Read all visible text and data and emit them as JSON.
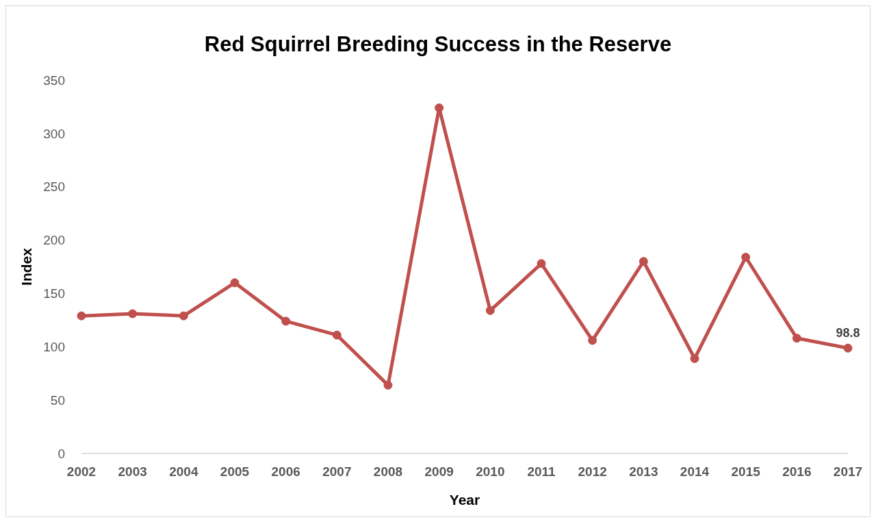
{
  "chart_data": {
    "type": "line",
    "title": "Red Squirrel Breeding Success in the Reserve",
    "xlabel": "Year",
    "ylabel": "Index",
    "categories": [
      "2002",
      "2003",
      "2004",
      "2005",
      "2006",
      "2007",
      "2008",
      "2009",
      "2010",
      "2011",
      "2012",
      "2013",
      "2014",
      "2015",
      "2016",
      "2017"
    ],
    "series": [
      {
        "color": "#c0504d",
        "values": [
          129,
          131,
          129,
          160,
          124,
          111,
          64,
          324,
          134,
          178,
          106,
          180,
          89,
          184,
          108,
          98.8
        ],
        "value_labels": [
          null,
          null,
          null,
          null,
          null,
          null,
          null,
          null,
          null,
          null,
          null,
          null,
          null,
          null,
          null,
          "98.8"
        ]
      }
    ],
    "ylim": [
      0,
      350
    ],
    "yticks": [
      0,
      50,
      100,
      150,
      200,
      250,
      300,
      350
    ],
    "grid": false,
    "legend": false,
    "marker": "circle",
    "line_style": "solid"
  }
}
